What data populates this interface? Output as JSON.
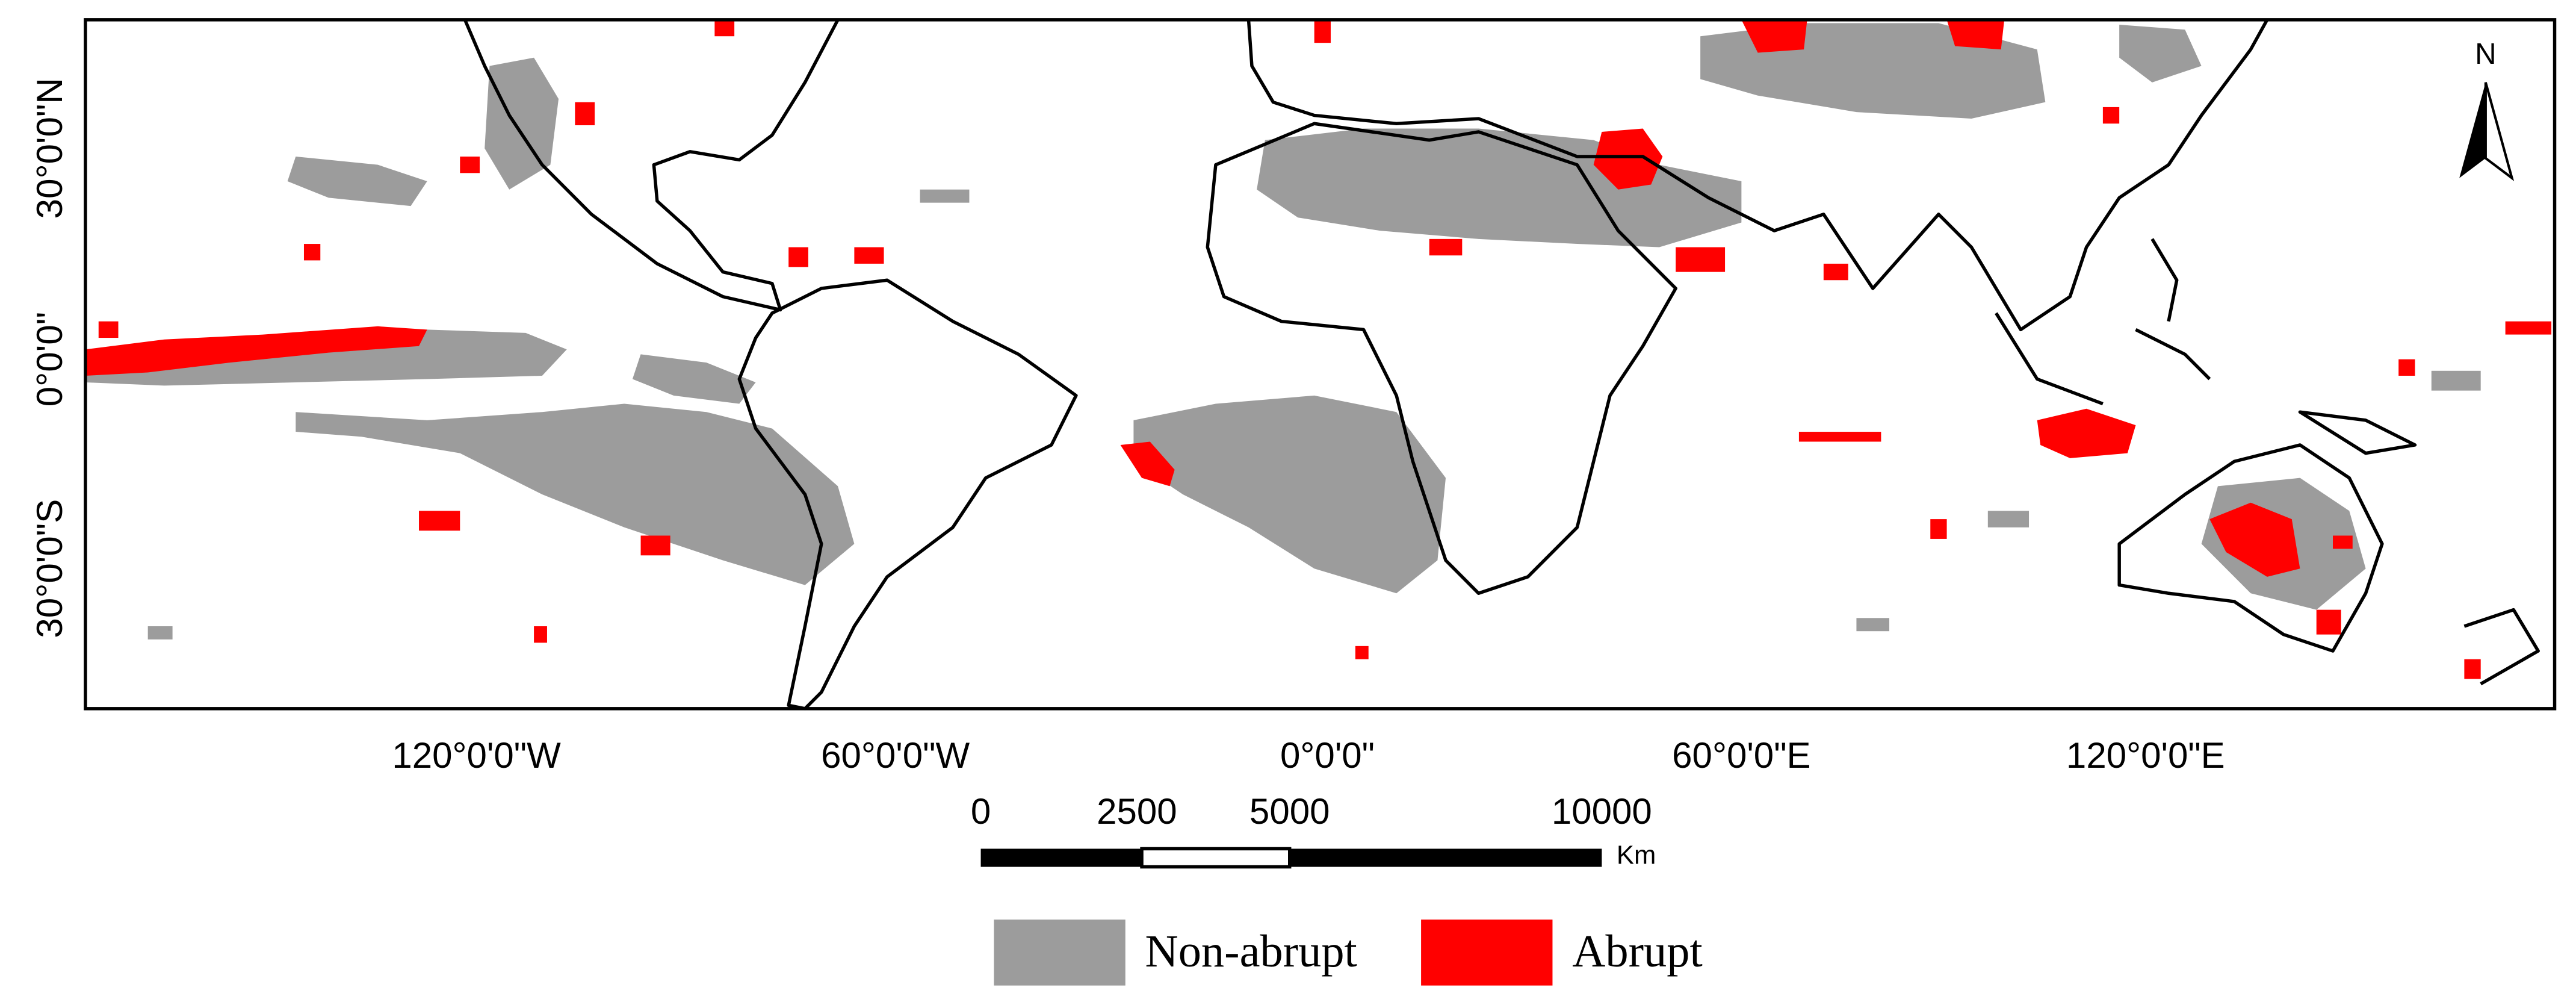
{
  "map": {
    "lat_labels": [
      "30°0'0\"N",
      "0°0'0\"",
      "30°0'0\"S"
    ],
    "lon_labels": [
      "120°0'0\"W",
      "60°0'0\"W",
      "0°0'0\"",
      "60°0'0\"E",
      "120°0'0\"E"
    ]
  },
  "north_arrow": {
    "label": "N"
  },
  "scale_bar": {
    "labels": [
      "0",
      "2500",
      "5000",
      "10000"
    ],
    "unit": "Km"
  },
  "legend": {
    "items": [
      {
        "label": "Non-abrupt",
        "color": "#9c9c9c"
      },
      {
        "label": "Abrupt",
        "color": "#ff0000"
      }
    ]
  }
}
